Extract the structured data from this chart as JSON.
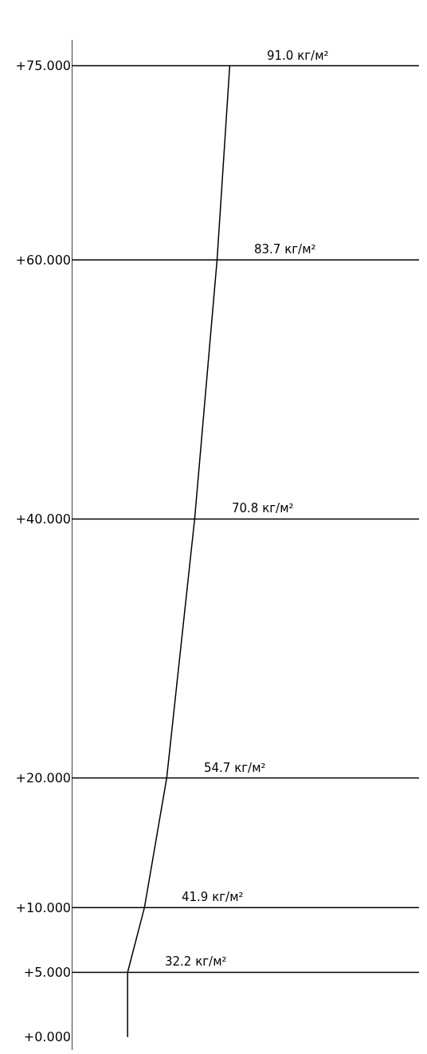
{
  "chart_data": {
    "type": "line",
    "orientation": "horizontal",
    "x": [
      0,
      5,
      10,
      20,
      40,
      60,
      75
    ],
    "series": [
      {
        "color": "#000000",
        "values": [
          32.2,
          32.2,
          41.9,
          54.7,
          70.8,
          83.7,
          91.0
        ],
        "value_labels": [
          null,
          "32.2 кг/м²",
          "41.9 кг/м²",
          "54.7 кг/м²",
          "70.8 кг/м²",
          "83.7 кг/м²",
          "91.0 кг/м²"
        ]
      }
    ],
    "xlim": [
      0,
      200
    ],
    "ylim": [
      -1,
      77
    ],
    "yticks": [
      {
        "value": 0,
        "label": "+0.000"
      },
      {
        "value": 5,
        "label": "+5.000"
      },
      {
        "value": 10,
        "label": "+10.000"
      },
      {
        "value": 20,
        "label": "+20.000"
      },
      {
        "value": 40,
        "label": "+40.000"
      },
      {
        "value": 60,
        "label": "+60.000"
      },
      {
        "value": 75,
        "label": "+75.000"
      }
    ],
    "ref_lines": [
      {
        "axis": "y",
        "value": 5,
        "color": "#000000"
      },
      {
        "axis": "y",
        "value": 10,
        "color": "#000000"
      },
      {
        "axis": "y",
        "value": 20,
        "color": "#000000"
      },
      {
        "axis": "y",
        "value": 40,
        "color": "#000000"
      },
      {
        "axis": "y",
        "value": 60,
        "color": "#000000"
      },
      {
        "axis": "y",
        "value": 75,
        "color": "#000000"
      }
    ],
    "tick_labels": "y",
    "marker": "none",
    "line_style": "solid"
  }
}
